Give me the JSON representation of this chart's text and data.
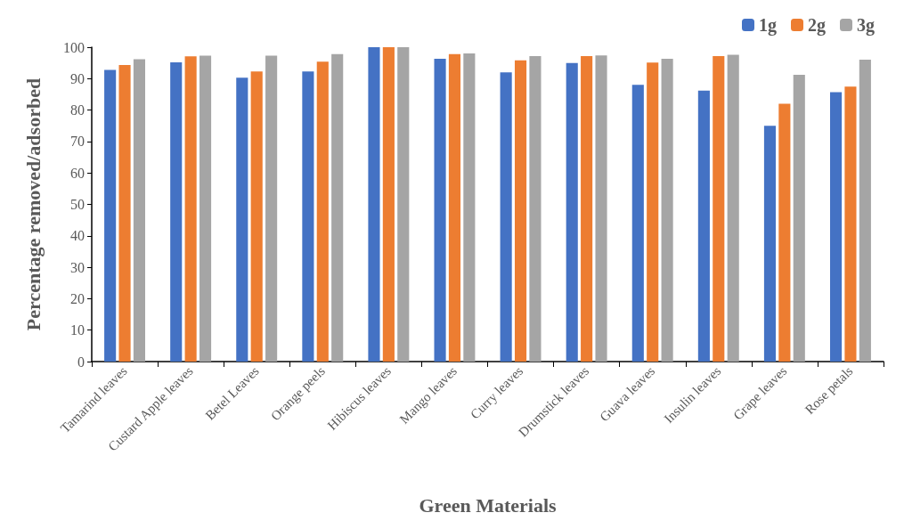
{
  "chart_data": {
    "type": "bar",
    "xlabel": "Green Materials",
    "ylabel": "Percentage removed/adsorbed",
    "categories": [
      "Tamarind leaves",
      "Custard Apple leaves",
      "Betel Leaves",
      "Orange peels",
      "Hibiscus leaves",
      "Mango leaves",
      "Curry leaves",
      "Drumstick leaves",
      "Guava leaves",
      "Insulin leaves",
      "Grape leaves",
      "Rose petals"
    ],
    "series": [
      {
        "name": "1g",
        "color": "#4472c4",
        "values": [
          92.8,
          95.2,
          90.3,
          92.3,
          100,
          96.3,
          92,
          95,
          88,
          86.2,
          75,
          85.7
        ]
      },
      {
        "name": "2g",
        "color": "#ed7d31",
        "values": [
          94.3,
          97.1,
          92.3,
          95.4,
          100,
          97.8,
          95.8,
          97.2,
          95.1,
          97.2,
          82,
          87.5
        ]
      },
      {
        "name": "3g",
        "color": "#a5a5a5",
        "values": [
          96.2,
          97.3,
          97.3,
          97.8,
          100,
          98,
          97.2,
          97.4,
          96.3,
          97.6,
          91.2,
          96
        ]
      }
    ],
    "ylim": [
      0,
      100
    ],
    "yticks": [
      0,
      10,
      20,
      30,
      40,
      50,
      60,
      70,
      80,
      90,
      100
    ],
    "grid": false,
    "legend": "top right"
  }
}
